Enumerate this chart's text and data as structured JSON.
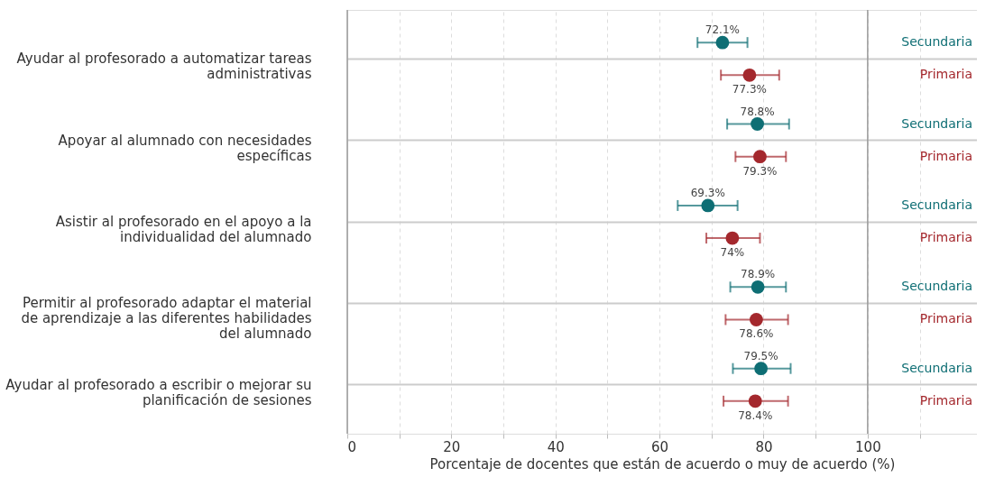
{
  "chart_data": {
    "type": "scatter",
    "orientation": "horizontal",
    "xlabel": "Porcentaje de docentes que están de acuerdo o muy de acuerdo (%)",
    "categories": [
      "Ayudar al profesorado a automatizar tareas administrativas",
      "Apoyar al alumnado con necesidades específicas",
      "Asistir al profesorado en el apoyo a la individualidad del alumnado",
      "Permitir al profesorado adaptar el material de aprendizaje a las diferentes habilidades del alumnado",
      "Ayudar al profesorado a escribir o mejorar su planificación de sesiones"
    ],
    "series": [
      {
        "name": "Secundaria",
        "color": "#0e6e74",
        "values": [
          72.1,
          78.8,
          69.3,
          78.9,
          79.5
        ],
        "errors": [
          [
            67.3,
            76.9
          ],
          [
            73.0,
            84.9
          ],
          [
            63.5,
            75.0
          ],
          [
            73.6,
            84.3
          ],
          [
            74.1,
            85.2
          ]
        ],
        "value_labels": [
          "72.1%",
          "78.8%",
          "69.3%",
          "78.9%",
          "79.5%"
        ]
      },
      {
        "name": "Primaria",
        "color": "#a4282d",
        "values": [
          77.3,
          79.3,
          74,
          78.6,
          78.4
        ],
        "errors": [
          [
            71.8,
            83.0
          ],
          [
            74.6,
            84.3
          ],
          [
            69.0,
            79.3
          ],
          [
            72.7,
            84.7
          ],
          [
            72.3,
            84.7
          ]
        ],
        "value_labels": [
          "77.3%",
          "79.3%",
          "74%",
          "78.6%",
          "78.4%"
        ]
      }
    ],
    "xlim": [
      0,
      121
    ],
    "xticks": [
      0,
      {
        "value": 10,
        "label": null
      },
      20,
      {
        "value": 30,
        "label": null
      },
      40,
      {
        "value": 50,
        "label": null
      },
      60,
      {
        "value": 70,
        "label": null
      },
      80,
      {
        "value": 90,
        "label": null
      },
      100,
      {
        "value": 110,
        "label": null
      }
    ],
    "ref_lines": [
      {
        "axis": "x",
        "value": 0,
        "label": null,
        "color": "#9a9a9a"
      },
      {
        "axis": "x",
        "value": 100,
        "label": null,
        "color": "#9a9a9a"
      }
    ],
    "grid": true,
    "marker": "circle"
  }
}
